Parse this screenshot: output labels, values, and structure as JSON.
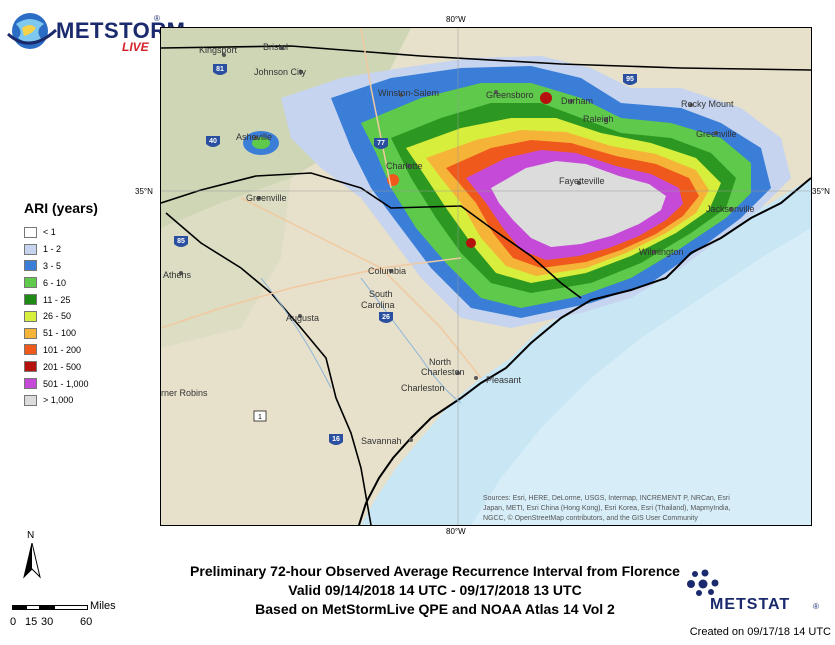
{
  "logo": {
    "word": "METSTORM",
    "live": "LIVE",
    "reg": "®"
  },
  "coords": {
    "top_lon": "80°W",
    "bottom_lon": "80°W",
    "left_lat": "35°N",
    "right_lat": "35°N"
  },
  "legend": {
    "title": "ARI (years)",
    "items": [
      {
        "label": "< 1",
        "color": "#ffffff"
      },
      {
        "label": "1 - 2",
        "color": "#c6d4ef"
      },
      {
        "label": "3 - 5",
        "color": "#3a7ed8"
      },
      {
        "label": "6 - 10",
        "color": "#5ec94a"
      },
      {
        "label": "11 - 25",
        "color": "#1f8b16"
      },
      {
        "label": "26 - 50",
        "color": "#d8ee3c"
      },
      {
        "label": "51 - 100",
        "color": "#f5b437"
      },
      {
        "label": "101 - 200",
        "color": "#ef5a1c"
      },
      {
        "label": "201 - 500",
        "color": "#b5120e"
      },
      {
        "label": "501 - 1,000",
        "color": "#c54ad8"
      },
      {
        "label": "> 1,000",
        "color": "#dcdcdc"
      }
    ]
  },
  "places": {
    "kingsport": "Kingsport",
    "bristol": "Bristol",
    "johnson_city": "Johnson City",
    "winston_salem": "Winston-Salem",
    "greensboro": "Greensboro",
    "durham": "Durham",
    "raleigh": "Raleigh",
    "rocky_mount": "Rocky Mount",
    "greenville_nc": "Greenville",
    "asheville": "Asheville",
    "charlotte": "Charlotte",
    "fayetteville": "Fayetteville",
    "jacksonville": "Jacksonville",
    "greenville_sc": "Greenville",
    "wilmington": "Wilmington",
    "athens": "Athens",
    "columbia": "Columbia",
    "south": "South",
    "carolina": "Carolina",
    "augusta": "Augusta",
    "north": "North",
    "charleston_n": "Charleston",
    "charleston": "Charleston",
    "pleasant": "Pleasant",
    "warner_robins": "rner Robins",
    "savannah": "Savannah"
  },
  "shields": {
    "i81": "81",
    "i40": "40",
    "i77": "77",
    "i95": "95",
    "i85": "85",
    "i26": "26",
    "i16": "16",
    "us1": "1"
  },
  "sources": [
    "Sources: Esri, HERE, DeLorme, USGS, Intermap, INCREMENT P, NRCan, Esri",
    "Japan, METI, Esri China (Hong Kong), Esri Korea, Esri (Thailand), MapmyIndia,",
    "NGCC, © OpenStreetMap contributors, and the GIS User Community"
  ],
  "caption": {
    "line1": "Preliminary 72-hour Observed Average Recurrence Interval from Florence",
    "line2": "Valid 09/14/2018 14 UTC - 09/17/2018 13 UTC",
    "line3": "Based on MetStormLive QPE and NOAA Atlas 14 Vol 2"
  },
  "north": "N",
  "scale": {
    "unit": "Miles",
    "ticks": [
      "0",
      "15",
      "30",
      "60"
    ]
  },
  "metstat": {
    "word": "METSTAT",
    "reg": "®"
  },
  "created": "Created on 09/17/18 14 UTC"
}
